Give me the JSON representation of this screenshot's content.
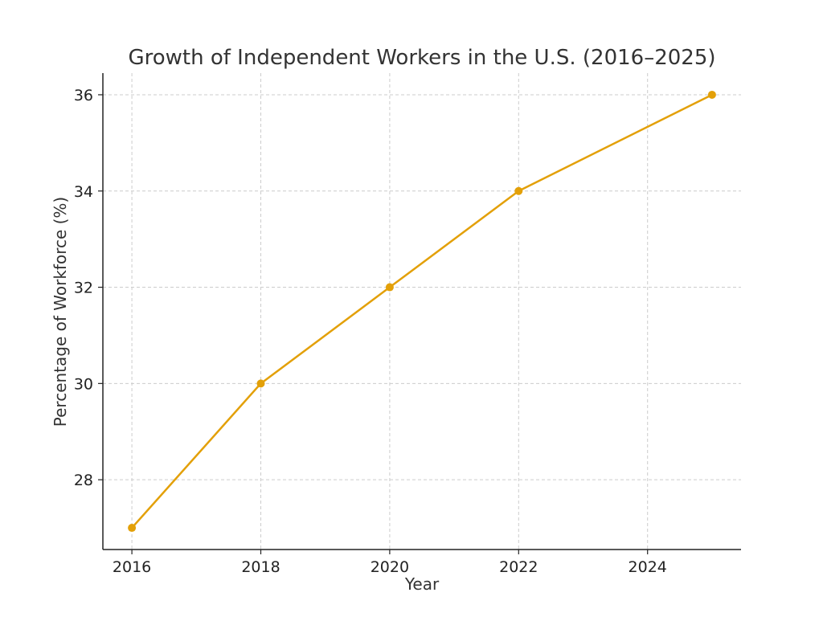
{
  "chart_data": {
    "type": "line",
    "title": "Growth of Independent Workers in the U.S. (2016–2025)",
    "xlabel": "Year",
    "ylabel": "Percentage of Workforce (%)",
    "x": [
      2016,
      2018,
      2020,
      2022,
      2025
    ],
    "series": [
      {
        "values": [
          27,
          30,
          32,
          34,
          36
        ],
        "color": "#E3A008",
        "marker": "circle"
      }
    ],
    "xticks": [
      2016,
      2018,
      2020,
      2022,
      2024
    ],
    "yticks": [
      28,
      30,
      32,
      34,
      36
    ],
    "xlim": [
      2015.55,
      2025.45
    ],
    "ylim": [
      26.55,
      36.45
    ],
    "grid": true,
    "grid_style": "dashed",
    "colors": {
      "line": "#E3A008",
      "grid": "#cccccc",
      "axis": "#222222",
      "text": "#333333"
    }
  }
}
